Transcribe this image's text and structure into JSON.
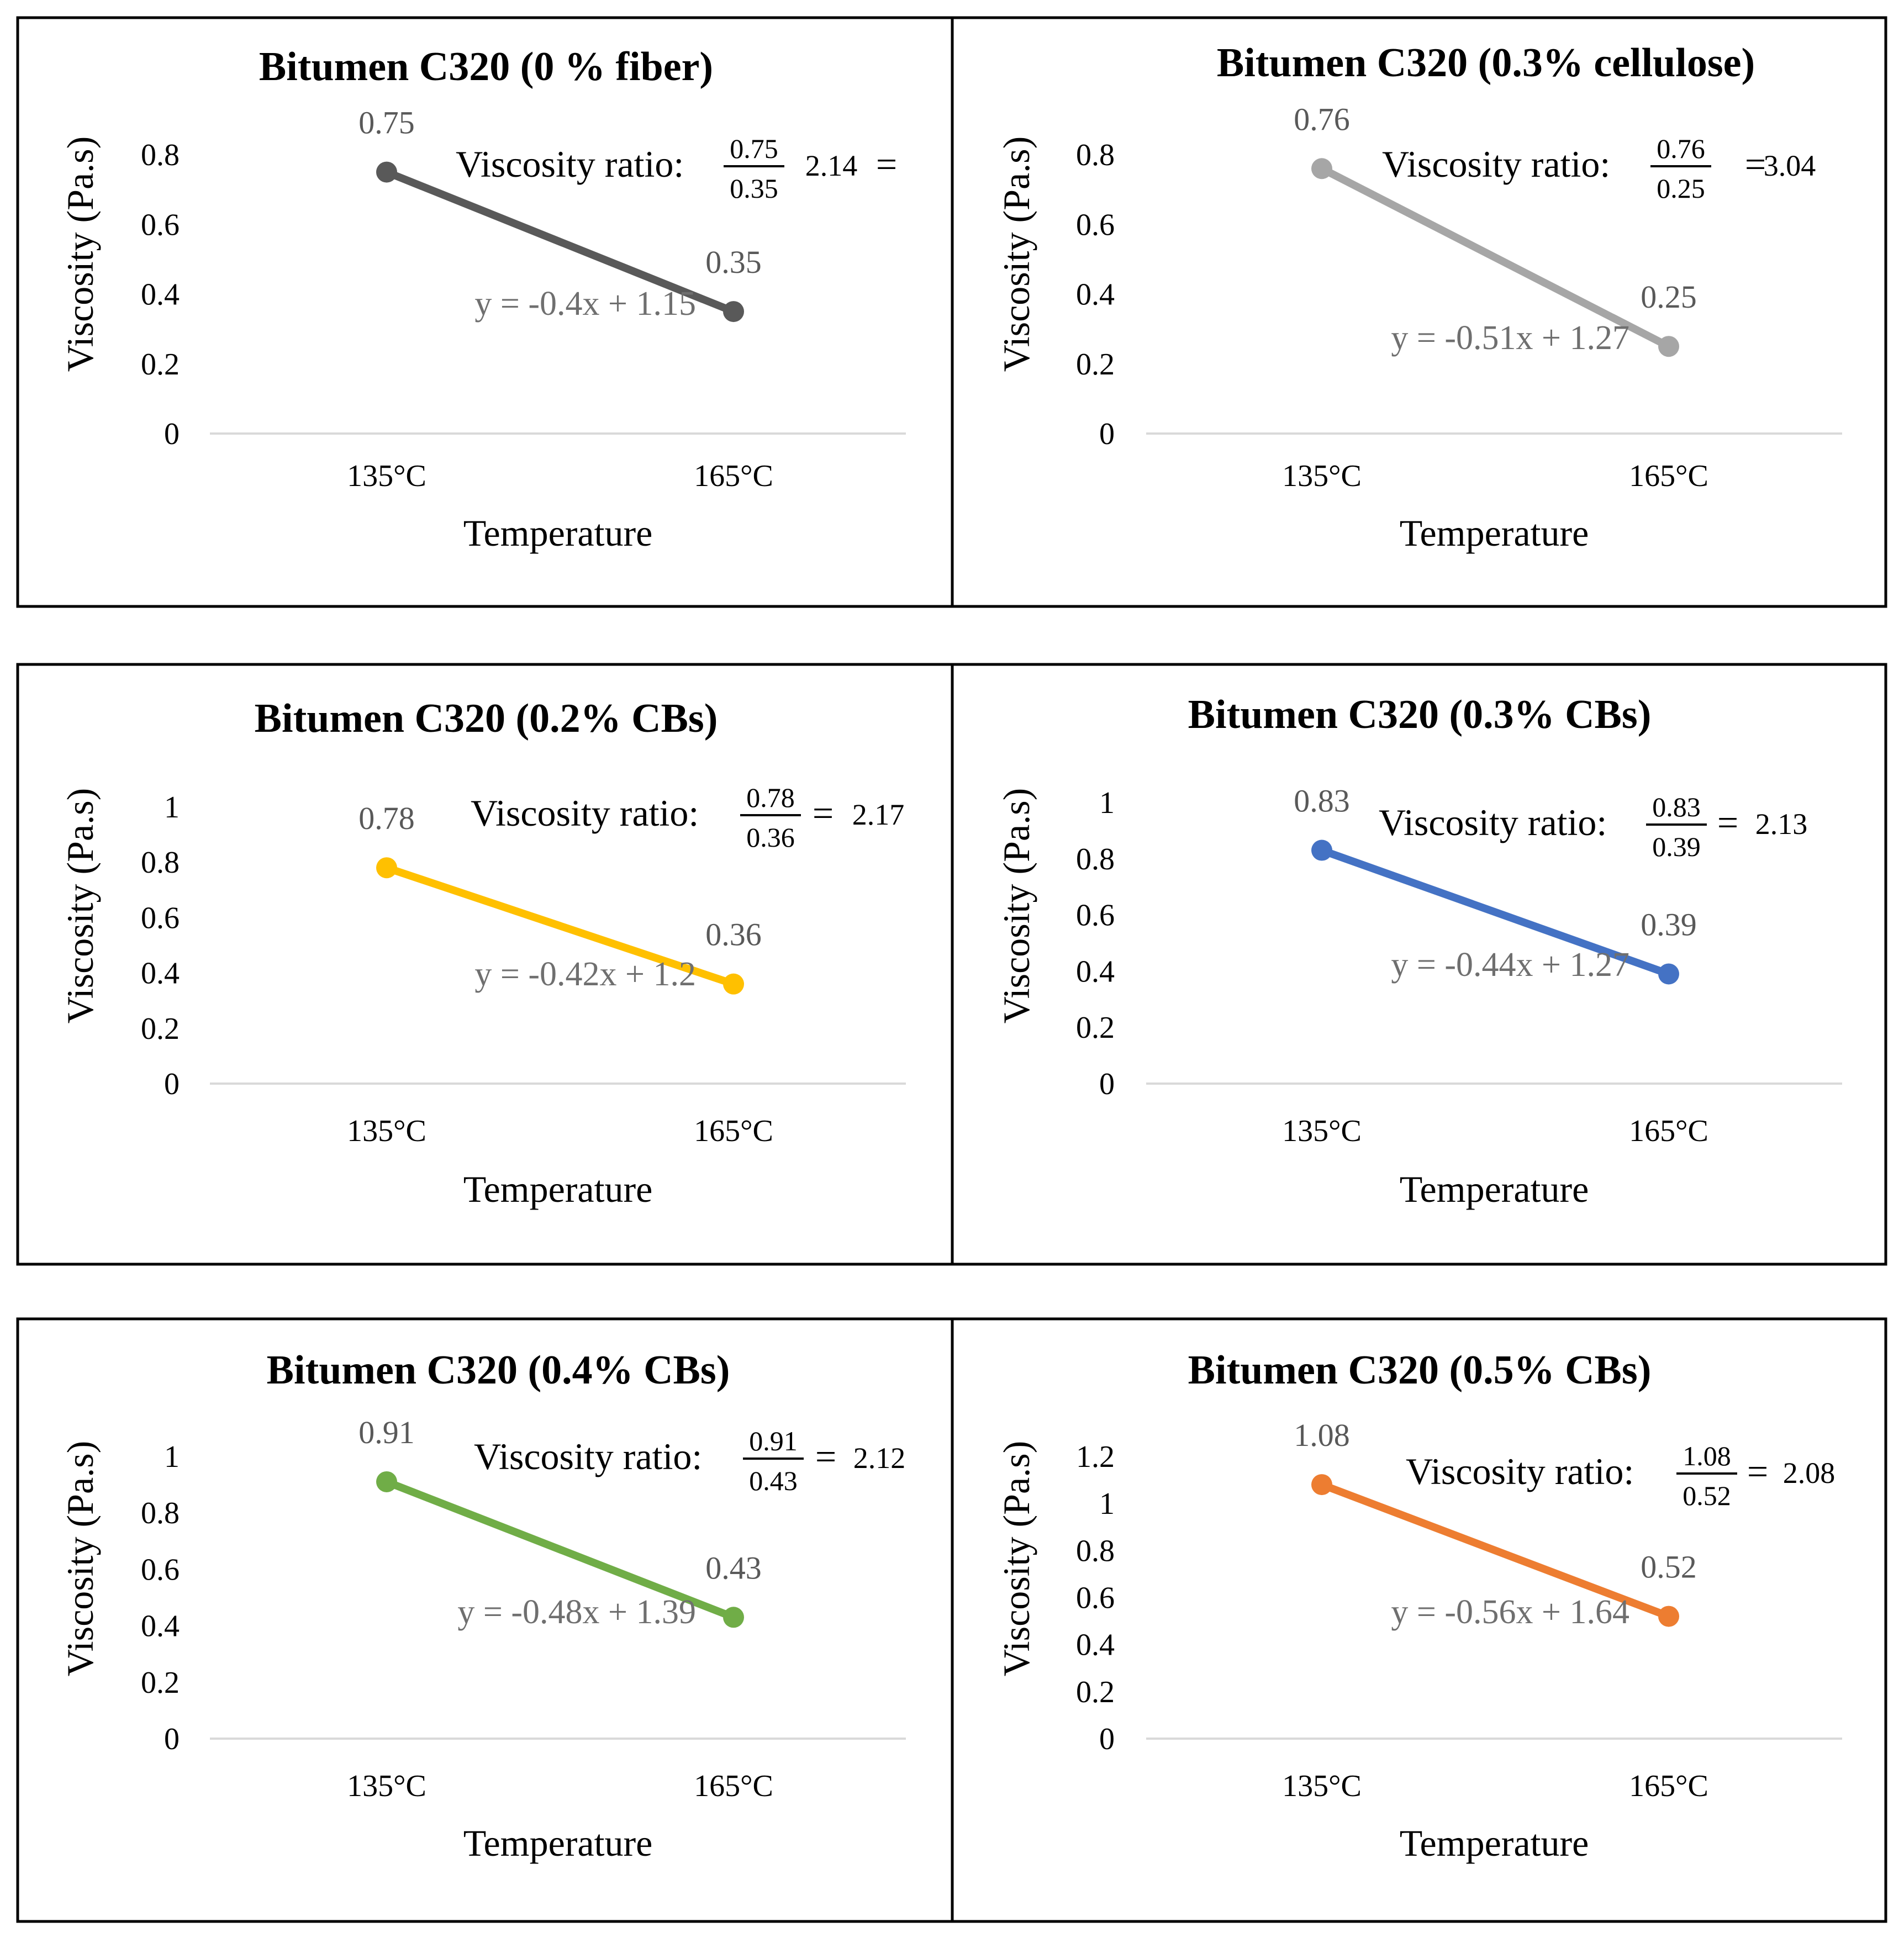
{
  "colors": {
    "black_gray": "#595959",
    "light_gray": "#a6a6a6",
    "yellow": "#ffc000",
    "blue": "#4472c4",
    "green": "#70ad47",
    "orange": "#ed7d31"
  },
  "chart_data": [
    {
      "type": "line",
      "title": "Bitumen  C320 (0 % fiber)",
      "xlabel": "Temperature",
      "ylabel": "Viscosity (Pa.s)",
      "categories": [
        "135°C",
        "165°C"
      ],
      "values": [
        0.75,
        0.35
      ],
      "data_labels": [
        "0.75",
        "0.35"
      ],
      "ylim": [
        0,
        0.8
      ],
      "yticks": [
        "0",
        "0.2",
        "0.4",
        "0.6",
        "0.8"
      ],
      "color": "#595959",
      "equation": "y = -0.4x + 1.15",
      "ratio": {
        "label": "Viscosity ratio:",
        "numerator": "0.75",
        "denominator": "0.35",
        "equals": "=",
        "result": "2.14"
      }
    },
    {
      "type": "line",
      "title": "Bitumen  C320 (0.3% cellulose)",
      "xlabel": "Temperature",
      "ylabel": "Viscosity (Pa.s)",
      "categories": [
        "135°C",
        "165°C"
      ],
      "values": [
        0.76,
        0.25
      ],
      "data_labels": [
        "0.76",
        "0.25"
      ],
      "ylim": [
        0,
        0.8
      ],
      "yticks": [
        "0",
        "0.2",
        "0.4",
        "0.6",
        "0.8"
      ],
      "color": "#a6a6a6",
      "equation": "y = -0.51x + 1.27",
      "ratio": {
        "label": "Viscosity ratio:",
        "numerator": "0.76",
        "denominator": "0.25",
        "equals": "=",
        "result": "3.04"
      }
    },
    {
      "type": "line",
      "title": "Bitumen  C320 (0.2% CBs)",
      "xlabel": "Temperature",
      "ylabel": "Viscosity (Pa.s)",
      "categories": [
        "135°C",
        "165°C"
      ],
      "values": [
        0.78,
        0.36
      ],
      "data_labels": [
        "0.78",
        "0.36"
      ],
      "ylim": [
        0,
        1
      ],
      "yticks": [
        "0",
        "0.2",
        "0.4",
        "0.6",
        "0.8",
        "1"
      ],
      "color": "#ffc000",
      "equation": "y = -0.42x + 1.2",
      "ratio": {
        "label": "Viscosity ratio:",
        "numerator": "0.78",
        "denominator": "0.36",
        "equals": "=",
        "result": "2.17"
      }
    },
    {
      "type": "line",
      "title": "Bitumen  C320 (0.3% CBs)",
      "xlabel": "Temperature",
      "ylabel": "Viscosity (Pa.s)",
      "categories": [
        "135°C",
        "165°C"
      ],
      "values": [
        0.83,
        0.39
      ],
      "data_labels": [
        "0.83",
        "0.39"
      ],
      "ylim": [
        0,
        1
      ],
      "yticks": [
        "0",
        "0.2",
        "0.4",
        "0.6",
        "0.8",
        "1"
      ],
      "color": "#4472c4",
      "equation": "y = -0.44x + 1.27",
      "ratio": {
        "label": "Viscosity ratio:",
        "numerator": "0.83",
        "denominator": "0.39",
        "equals": "=",
        "result": "2.13"
      }
    },
    {
      "type": "line",
      "title": "Bitumen  C320 (0.4% CBs)",
      "xlabel": "Temperature",
      "ylabel": "Viscosity (Pa.s)",
      "categories": [
        "135°C",
        "165°C"
      ],
      "values": [
        0.91,
        0.43
      ],
      "data_labels": [
        "0.91",
        "0.43"
      ],
      "ylim": [
        0,
        1
      ],
      "yticks": [
        "0",
        "0.2",
        "0.4",
        "0.6",
        "0.8",
        "1"
      ],
      "color": "#70ad47",
      "equation": "y = -0.48x + 1.39",
      "ratio": {
        "label": "Viscosity ratio:",
        "numerator": "0.91",
        "denominator": "0.43",
        "equals": "=",
        "result": "2.12"
      }
    },
    {
      "type": "line",
      "title": "Bitumen  C320 (0.5% CBs)",
      "xlabel": "Temperature",
      "ylabel": "Viscosity (Pa.s)",
      "categories": [
        "135°C",
        "165°C"
      ],
      "values": [
        1.08,
        0.52
      ],
      "data_labels": [
        "1.08",
        "0.52"
      ],
      "ylim": [
        0,
        1.2
      ],
      "yticks": [
        "0",
        "0.2",
        "0.4",
        "0.6",
        "0.8",
        "1",
        "1.2"
      ],
      "color": "#ed7d31",
      "equation": "y = -0.56x + 1.64",
      "ratio": {
        "label": "Viscosity ratio:",
        "numerator": "1.08",
        "denominator": "0.52",
        "equals": "=",
        "result": "2.08"
      }
    }
  ]
}
